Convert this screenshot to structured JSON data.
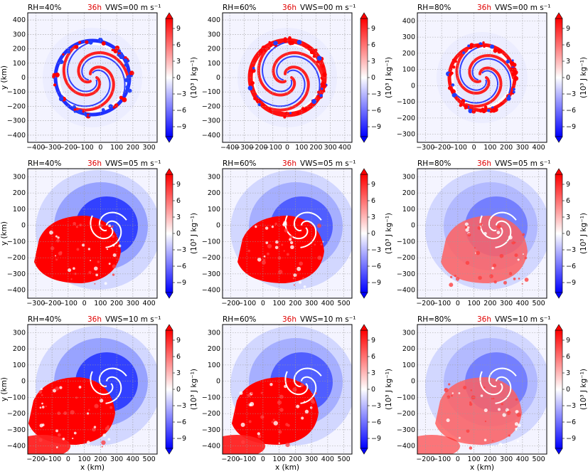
{
  "figure": {
    "xlabel": "x (km)",
    "ylabel": "y (km)",
    "time_label": "36h",
    "colorbar_label": "(10³ J kg⁻¹)",
    "colorbar_ticks": [
      "9",
      "6",
      "3",
      "0",
      "−3",
      "−6",
      "−9"
    ],
    "colormap": {
      "negative": "#0000ff",
      "zero": "#ffffff",
      "positive": "#ff0000"
    }
  },
  "chart_data": [
    {
      "type": "heatmap",
      "rh": "RH=40%",
      "vws": "VWS=00 m s⁻¹",
      "xticks": [
        "−400",
        "−300",
        "−200",
        "−100",
        "0",
        "100",
        "200",
        "300"
      ],
      "yticks": [
        "400",
        "300",
        "200",
        "100",
        "0",
        "−100",
        "−200",
        "−300",
        "−400"
      ],
      "xlim": [
        -400,
        390
      ],
      "ylim": [
        -400,
        400
      ],
      "vrange": [
        -10,
        10
      ]
    },
    {
      "type": "heatmap",
      "rh": "RH=60%",
      "vws": "VWS=00 m s⁻¹",
      "xticks": [
        "−400",
        "−300",
        "−200",
        "−100",
        "0",
        "100",
        "200",
        "300",
        "400"
      ],
      "yticks": [
        "400",
        "300",
        "200",
        "100",
        "0",
        "−100",
        "−200",
        "−300",
        "−400"
      ],
      "xlim": [
        -400,
        400
      ],
      "ylim": [
        -400,
        400
      ],
      "vrange": [
        -10,
        10
      ]
    },
    {
      "type": "heatmap",
      "rh": "RH=80%",
      "vws": "VWS=00 m s⁻¹",
      "xticks": [
        "−300",
        "−200",
        "−100",
        "0",
        "100",
        "200",
        "300",
        "400"
      ],
      "yticks": [
        "400",
        "300",
        "200",
        "100",
        "0",
        "−100",
        "−200",
        "−300"
      ],
      "xlim": [
        -400,
        400
      ],
      "ylim": [
        -390,
        400
      ],
      "vrange": [
        -10,
        10
      ]
    },
    {
      "type": "heatmap",
      "rh": "RH=40%",
      "vws": "VWS=05 m s⁻¹",
      "xticks": [
        "−300",
        "−200",
        "−100",
        "0",
        "100",
        "200",
        "300",
        "400"
      ],
      "yticks": [
        "300",
        "200",
        "100",
        "0",
        "−100",
        "−200",
        "−300",
        "−400"
      ],
      "xlim": [
        -310,
        490
      ],
      "ylim": [
        -420,
        380
      ],
      "vrange": [
        -10,
        10
      ]
    },
    {
      "type": "heatmap",
      "rh": "RH=60%",
      "vws": "VWS=05 m s⁻¹",
      "xticks": [
        "−200",
        "−100",
        "0",
        "100",
        "200",
        "300",
        "400",
        "500"
      ],
      "yticks": [
        "300",
        "200",
        "100",
        "0",
        "−100",
        "−200",
        "−300",
        "−400"
      ],
      "xlim": [
        -290,
        510
      ],
      "ylim": [
        -420,
        380
      ],
      "vrange": [
        -10,
        10
      ]
    },
    {
      "type": "heatmap",
      "rh": "RH=80%",
      "vws": "VWS=05 m s⁻¹",
      "xticks": [
        "−200",
        "−100",
        "0",
        "100",
        "200",
        "300",
        "400",
        "500"
      ],
      "yticks": [
        "300",
        "200",
        "100",
        "0",
        "−100",
        "−200",
        "−300",
        "−400"
      ],
      "xlim": [
        -290,
        510
      ],
      "ylim": [
        -420,
        380
      ],
      "vrange": [
        -10,
        10
      ]
    },
    {
      "type": "heatmap",
      "rh": "RH=40%",
      "vws": "VWS=10 m s⁻¹",
      "xticks": [
        "−200",
        "−100",
        "0",
        "100",
        "200",
        "300",
        "400",
        "500"
      ],
      "yticks": [
        "300",
        "200",
        "100",
        "0",
        "−100",
        "−200",
        "−300",
        "−400"
      ],
      "xlim": [
        -290,
        530
      ],
      "ylim": [
        -450,
        360
      ],
      "vrange": [
        -10,
        10
      ]
    },
    {
      "type": "heatmap",
      "rh": "RH=60%",
      "vws": "VWS=10 m s⁻¹",
      "xticks": [
        "−200",
        "−100",
        "0",
        "100",
        "200",
        "300",
        "400",
        "500"
      ],
      "yticks": [
        "300",
        "200",
        "100",
        "0",
        "−100",
        "−200",
        "−300",
        "−400"
      ],
      "xlim": [
        -230,
        580
      ],
      "ylim": [
        -450,
        360
      ],
      "vrange": [
        -10,
        10
      ]
    },
    {
      "type": "heatmap",
      "rh": "RH=80%",
      "vws": "VWS=10 m s⁻¹",
      "xticks": [
        "−200",
        "−100",
        "0",
        "100",
        "200",
        "300",
        "400",
        "500"
      ],
      "yticks": [
        "300",
        "200",
        "100",
        "0",
        "−100",
        "−200",
        "−300",
        "−400"
      ],
      "xlim": [
        -230,
        580
      ],
      "ylim": [
        -450,
        360
      ],
      "vrange": [
        -10,
        10
      ]
    }
  ]
}
